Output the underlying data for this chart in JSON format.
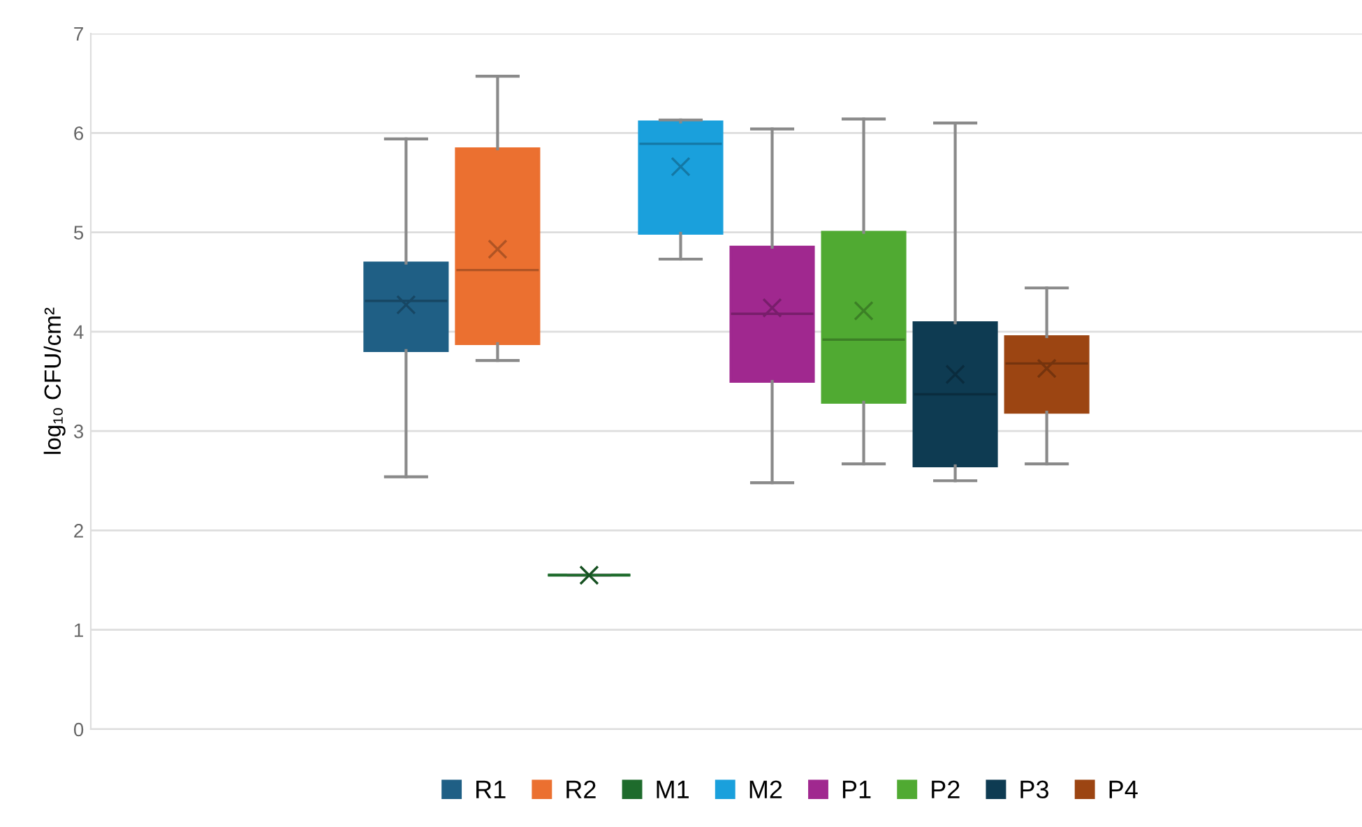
{
  "chart_data": {
    "type": "box",
    "ylabel": "log₁₀ CFU/cm²",
    "categories": [
      null
    ],
    "ylim": [
      0,
      7
    ],
    "yticks": [
      0,
      1,
      2,
      3,
      4,
      5,
      6,
      7
    ],
    "grid": "y",
    "legend": "bottom",
    "series": [
      {
        "name": "R1",
        "color": "#1f5f85",
        "boxes": [
          {
            "low": 2.54,
            "q1": 3.81,
            "median": 4.31,
            "q3": 4.69,
            "high": 5.94,
            "mean": 4.27
          }
        ]
      },
      {
        "name": "R2",
        "color": "#eb7030",
        "boxes": [
          {
            "low": 3.71,
            "q1": 3.88,
            "median": 4.62,
            "q3": 5.84,
            "high": 6.57,
            "mean": 4.83
          }
        ]
      },
      {
        "name": "M1",
        "color": "#1e6b2c",
        "boxes": [
          {
            "low": 1.55,
            "q1": 1.55,
            "median": 1.55,
            "q3": 1.55,
            "high": 1.55,
            "mean": 1.55
          }
        ]
      },
      {
        "name": "M2",
        "color": "#1aa0dc",
        "boxes": [
          {
            "low": 4.73,
            "q1": 4.99,
            "median": 5.89,
            "q3": 6.11,
            "high": 6.13,
            "mean": 5.66
          }
        ]
      },
      {
        "name": "P1",
        "color": "#a0288f",
        "boxes": [
          {
            "low": 2.48,
            "q1": 3.5,
            "median": 4.18,
            "q3": 4.85,
            "high": 6.04,
            "mean": 4.24
          }
        ]
      },
      {
        "name": "P2",
        "color": "#50aa32",
        "boxes": [
          {
            "low": 2.67,
            "q1": 3.29,
            "median": 3.92,
            "q3": 5.0,
            "high": 6.14,
            "mean": 4.21
          }
        ]
      },
      {
        "name": "P3",
        "color": "#0e3b52",
        "boxes": [
          {
            "low": 2.5,
            "q1": 2.65,
            "median": 3.37,
            "q3": 4.09,
            "high": 6.1,
            "mean": 3.57
          }
        ]
      },
      {
        "name": "P4",
        "color": "#9c4512",
        "boxes": [
          {
            "low": 2.67,
            "q1": 3.19,
            "median": 3.68,
            "q3": 3.95,
            "high": 4.44,
            "mean": 3.63
          }
        ]
      }
    ]
  }
}
